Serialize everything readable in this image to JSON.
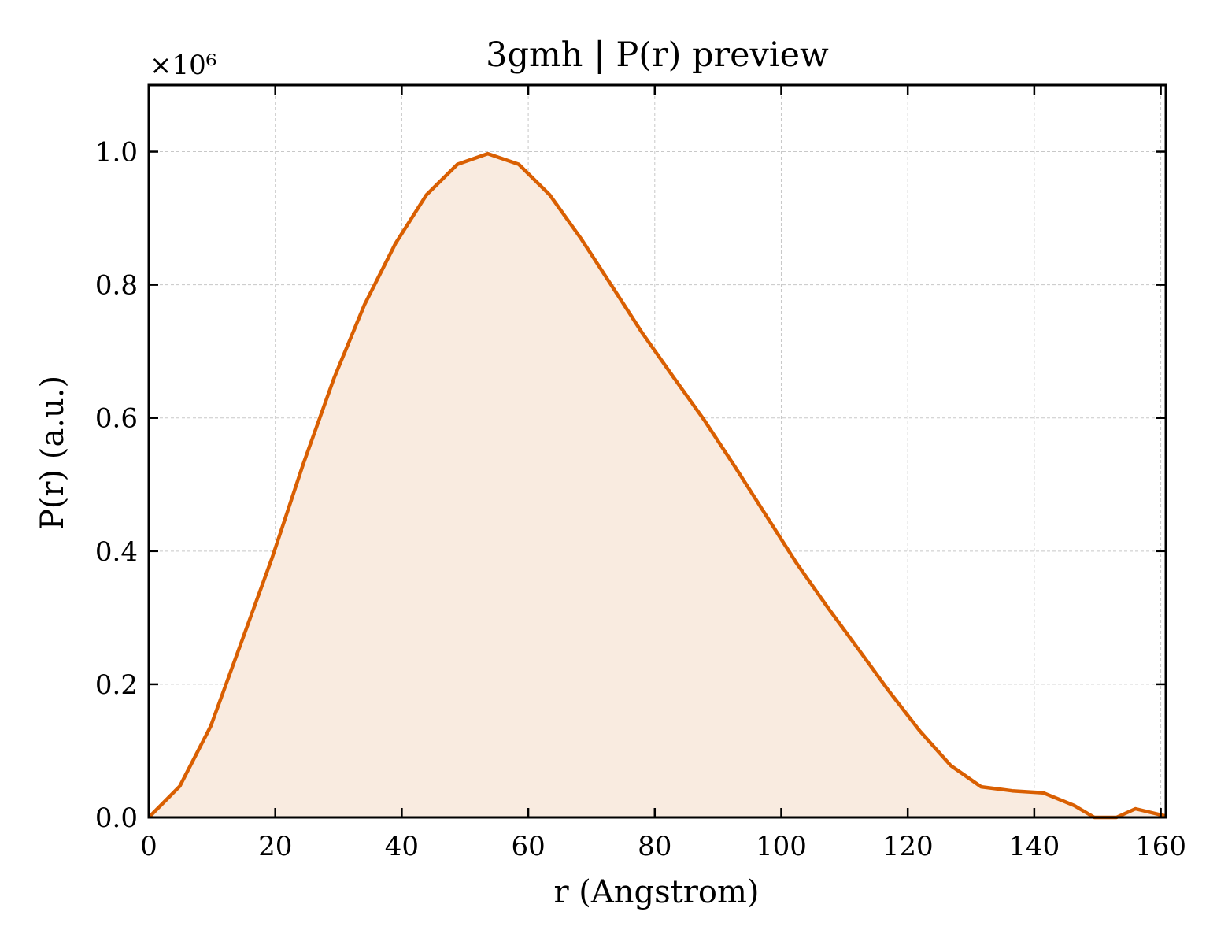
{
  "chart_data": {
    "type": "area",
    "title": "3gmh | P(r) preview",
    "xlabel": "r (Angstrom)",
    "ylabel": "P(r) (a.u.)",
    "y_multiplier": "×10⁶",
    "xlim": [
      0,
      160.8
    ],
    "ylim": [
      0,
      1.1
    ],
    "xticks": [
      0,
      20,
      40,
      60,
      80,
      100,
      120,
      140,
      160
    ],
    "yticks": [
      0.0,
      0.2,
      0.4,
      0.6,
      0.8,
      1.0
    ],
    "xtick_labels": [
      "0",
      "20",
      "40",
      "60",
      "80",
      "100",
      "120",
      "140",
      "160"
    ],
    "ytick_labels": [
      "0.0",
      "0.2",
      "0.4",
      "0.6",
      "0.8",
      "1.0"
    ],
    "grid": true,
    "line_color": "#d95f02",
    "fill_color": "#f9ebe0",
    "series": [
      {
        "x": [
          0,
          4.9,
          9.8,
          14.6,
          19.5,
          24.4,
          29.3,
          34.1,
          39.0,
          43.9,
          48.8,
          53.6,
          58.5,
          63.4,
          68.3,
          73.1,
          78.0,
          82.9,
          87.8,
          92.6,
          97.5,
          102.4,
          107.3,
          112.1,
          117.0,
          121.9,
          126.8,
          131.6,
          136.5,
          141.4,
          146.3,
          149.5,
          153.0,
          156.0,
          160.8
        ],
        "y": [
          0.0,
          0.047,
          0.137,
          0.262,
          0.39,
          0.53,
          0.66,
          0.77,
          0.862,
          0.935,
          0.981,
          0.997,
          0.981,
          0.935,
          0.87,
          0.8,
          0.728,
          0.662,
          0.597,
          0.528,
          0.455,
          0.382,
          0.316,
          0.254,
          0.19,
          0.13,
          0.078,
          0.046,
          0.04,
          0.037,
          0.018,
          0.0,
          0.0,
          0.013,
          0.002
        ]
      }
    ]
  }
}
